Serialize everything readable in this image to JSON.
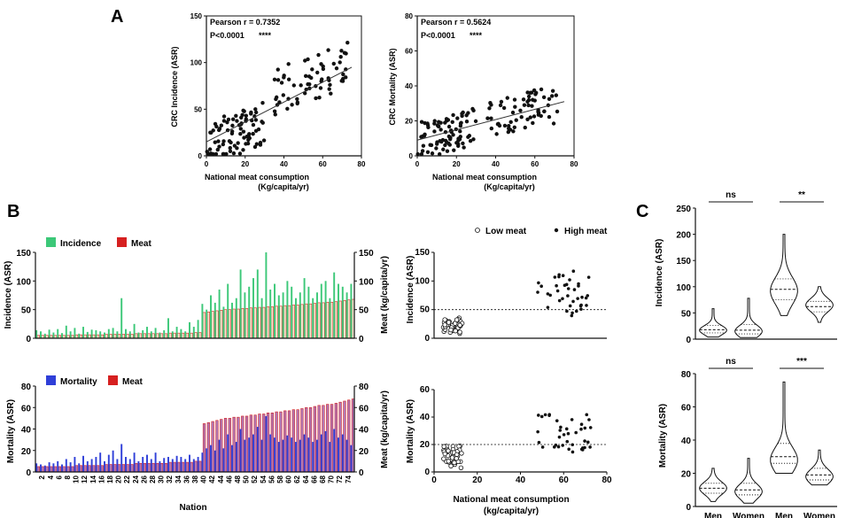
{
  "panel_labels": {
    "a": "A",
    "b": "B",
    "c": "C"
  },
  "colors": {
    "incidence": "#3cc878",
    "meat": "#d62020",
    "mortality": "#2f3fd8",
    "mortality_meat_fill": "#b07ab8",
    "ink": "#111111"
  },
  "chart_data": [
    {
      "id": "a1",
      "type": "scatter",
      "xlabel": "National meat consumption",
      "xlabel2": "(Kg/capita/yr)",
      "ylabel": "CRC Incidence (ASR)",
      "xlim": [
        0,
        80
      ],
      "ylim": [
        0,
        150
      ],
      "xticks": [
        "0",
        "20",
        "40",
        "60",
        "80"
      ],
      "yticks": [
        "0",
        "50",
        "100",
        "150"
      ],
      "annotations": [
        "Pearson r = 0.7352",
        "P<0.0001",
        "****"
      ],
      "fit": {
        "x1": 0,
        "y1": 15,
        "x2": 75,
        "y2": 95
      },
      "seed": 11,
      "n": 150
    },
    {
      "id": "a2",
      "type": "scatter",
      "xlabel": "National meat consumption",
      "xlabel2": "(Kg/capita/yr)",
      "ylabel": "CRC Mortality (ASR)",
      "xlim": [
        0,
        80
      ],
      "ylim": [
        0,
        80
      ],
      "xticks": [
        "0",
        "20",
        "40",
        "60",
        "80"
      ],
      "yticks": [
        "0",
        "20",
        "40",
        "60",
        "80"
      ],
      "annotations": [
        "Pearson r = 0.5624",
        "P<0.0001",
        "****"
      ],
      "fit": {
        "x1": 0,
        "y1": 9,
        "x2": 75,
        "y2": 31
      },
      "seed": 23,
      "n": 150
    },
    {
      "id": "b1",
      "type": "bar",
      "legend": [
        "Incidence",
        "Meat"
      ],
      "ylabel": "Incidence (ASR)",
      "ylabel_right": "Meat (kg/capita/yr)",
      "ylim": [
        0,
        150
      ],
      "ylim_right": [
        0,
        150
      ],
      "yticks": [
        "0",
        "50",
        "100",
        "150"
      ],
      "yticks_right": [
        "0",
        "50",
        "100",
        "150"
      ],
      "categories_count": 75,
      "values": [
        14,
        12,
        8,
        15,
        10,
        16,
        9,
        22,
        12,
        18,
        8,
        20,
        11,
        15,
        14,
        12,
        10,
        16,
        18,
        12,
        70,
        16,
        12,
        25,
        10,
        14,
        20,
        12,
        18,
        10,
        14,
        35,
        12,
        20,
        16,
        12,
        28,
        20,
        32,
        60,
        50,
        75,
        62,
        85,
        55,
        95,
        62,
        70,
        120,
        80,
        90,
        105,
        120,
        70,
        150,
        85,
        95,
        75,
        80,
        100,
        90,
        70,
        80,
        105,
        90,
        70,
        80,
        95,
        100,
        70,
        115,
        95,
        90,
        80,
        95
      ],
      "meat": [
        5,
        5,
        5,
        5,
        5,
        5,
        5,
        5,
        5,
        6,
        6,
        6,
        6,
        6,
        6,
        6,
        7,
        7,
        7,
        7,
        7,
        7,
        7,
        8,
        8,
        8,
        8,
        8,
        8,
        8,
        8,
        9,
        9,
        9,
        9,
        9,
        9,
        10,
        10,
        45,
        46,
        47,
        48,
        49,
        50,
        50,
        51,
        51,
        52,
        52,
        53,
        53,
        54,
        54,
        55,
        55,
        56,
        56,
        57,
        57,
        58,
        58,
        59,
        60,
        60,
        61,
        62,
        62,
        63,
        63,
        64,
        65,
        66,
        67,
        68
      ]
    },
    {
      "id": "b2",
      "type": "bar",
      "legend": [
        "Mortality",
        "Meat"
      ],
      "ylabel": "Mortality (ASR)",
      "ylabel_right": "Meat (kg/capita/yr)",
      "ylim": [
        0,
        80
      ],
      "ylim_right": [
        0,
        80
      ],
      "yticks": [
        "0",
        "20",
        "40",
        "60",
        "80"
      ],
      "yticks_right": [
        "0",
        "20",
        "40",
        "60",
        "80"
      ],
      "xlabel": "Nation",
      "xticks": [
        "2",
        "4",
        "6",
        "8",
        "10",
        "12",
        "14",
        "16",
        "18",
        "20",
        "22",
        "24",
        "26",
        "28",
        "30",
        "32",
        "34",
        "36",
        "38",
        "40",
        "42",
        "44",
        "46",
        "48",
        "50",
        "52",
        "54",
        "56",
        "58",
        "60",
        "62",
        "64",
        "66",
        "68",
        "70",
        "72",
        "74"
      ],
      "values": [
        8,
        7,
        6,
        9,
        8,
        10,
        7,
        12,
        9,
        14,
        8,
        15,
        10,
        12,
        14,
        18,
        10,
        16,
        20,
        12,
        26,
        14,
        12,
        18,
        10,
        14,
        16,
        12,
        18,
        10,
        13,
        14,
        12,
        15,
        14,
        12,
        16,
        12,
        14,
        18,
        22,
        25,
        20,
        30,
        22,
        35,
        25,
        28,
        40,
        30,
        32,
        35,
        42,
        30,
        52,
        35,
        32,
        28,
        30,
        34,
        32,
        28,
        30,
        35,
        32,
        28,
        30,
        35,
        38,
        28,
        40,
        32,
        35,
        30,
        25
      ],
      "meat": [
        5,
        5,
        5,
        5,
        5,
        5,
        5,
        5,
        5,
        6,
        6,
        6,
        6,
        6,
        6,
        6,
        7,
        7,
        7,
        7,
        7,
        7,
        7,
        8,
        8,
        8,
        8,
        8,
        8,
        8,
        8,
        9,
        9,
        9,
        9,
        9,
        9,
        10,
        10,
        45,
        46,
        47,
        48,
        49,
        50,
        50,
        51,
        51,
        52,
        52,
        53,
        53,
        54,
        54,
        55,
        55,
        56,
        56,
        57,
        57,
        58,
        58,
        59,
        60,
        60,
        61,
        62,
        62,
        63,
        63,
        64,
        65,
        66,
        67,
        68
      ]
    },
    {
      "id": "b3",
      "type": "scatter",
      "legend": [
        "Low meat",
        "High meat"
      ],
      "ylabel": "Incidence (ASR)",
      "xlim": [
        0,
        80
      ],
      "ylim": [
        0,
        150
      ],
      "xticks": [],
      "yticks": [
        "0",
        "50",
        "100",
        "150"
      ],
      "threshold": 50,
      "seed": 41
    },
    {
      "id": "b4",
      "type": "scatter",
      "ylabel": "Mortality (ASR)",
      "xlabel": "National meat consumption",
      "xlabel2": "(kg/capita/yr)",
      "xlim": [
        0,
        80
      ],
      "ylim": [
        0,
        60
      ],
      "xticks": [
        "0",
        "20",
        "40",
        "60",
        "80"
      ],
      "yticks": [
        "0",
        "20",
        "40",
        "60"
      ],
      "threshold": 20,
      "seed": 57
    },
    {
      "id": "c1",
      "type": "violin",
      "ylabel": "Incidence (ASR)",
      "ylim": [
        0,
        250
      ],
      "yticks": [
        "0",
        "50",
        "100",
        "150",
        "200",
        "250"
      ],
      "categories": [
        "Men",
        "Women",
        "Men",
        "Women"
      ],
      "groups": [
        {
          "min": 4,
          "q1": 12,
          "median": 18,
          "q3": 26,
          "max": 58,
          "mode": 17
        },
        {
          "min": 3,
          "q1": 10,
          "median": 17,
          "q3": 28,
          "max": 78,
          "mode": 15
        },
        {
          "min": 45,
          "q1": 75,
          "median": 95,
          "q3": 115,
          "max": 200,
          "mode": 92
        },
        {
          "min": 32,
          "q1": 52,
          "median": 62,
          "q3": 72,
          "max": 100,
          "mode": 65
        }
      ],
      "brackets": [
        {
          "from": 0,
          "to": 1,
          "label": "ns"
        },
        {
          "from": 2,
          "to": 3,
          "label": "**"
        }
      ]
    },
    {
      "id": "c2",
      "type": "violin",
      "ylabel": "Mortality (ASR)",
      "ylim": [
        0,
        80
      ],
      "yticks": [
        "0",
        "20",
        "40",
        "60",
        "80"
      ],
      "categories": [
        "Men",
        "Women",
        "Men",
        "Women"
      ],
      "groups": [
        {
          "min": 3,
          "q1": 8,
          "median": 11,
          "q3": 14,
          "max": 23,
          "mode": 11
        },
        {
          "min": 2,
          "q1": 7,
          "median": 10,
          "q3": 14,
          "max": 29,
          "mode": 9
        },
        {
          "min": 20,
          "q1": 26,
          "median": 30,
          "q3": 38,
          "max": 75,
          "mode": 28
        },
        {
          "min": 13,
          "q1": 16,
          "median": 19,
          "q3": 23,
          "max": 34,
          "mode": 18
        }
      ],
      "brackets": [
        {
          "from": 0,
          "to": 1,
          "label": "ns"
        },
        {
          "from": 2,
          "to": 3,
          "label": "***"
        }
      ]
    }
  ]
}
